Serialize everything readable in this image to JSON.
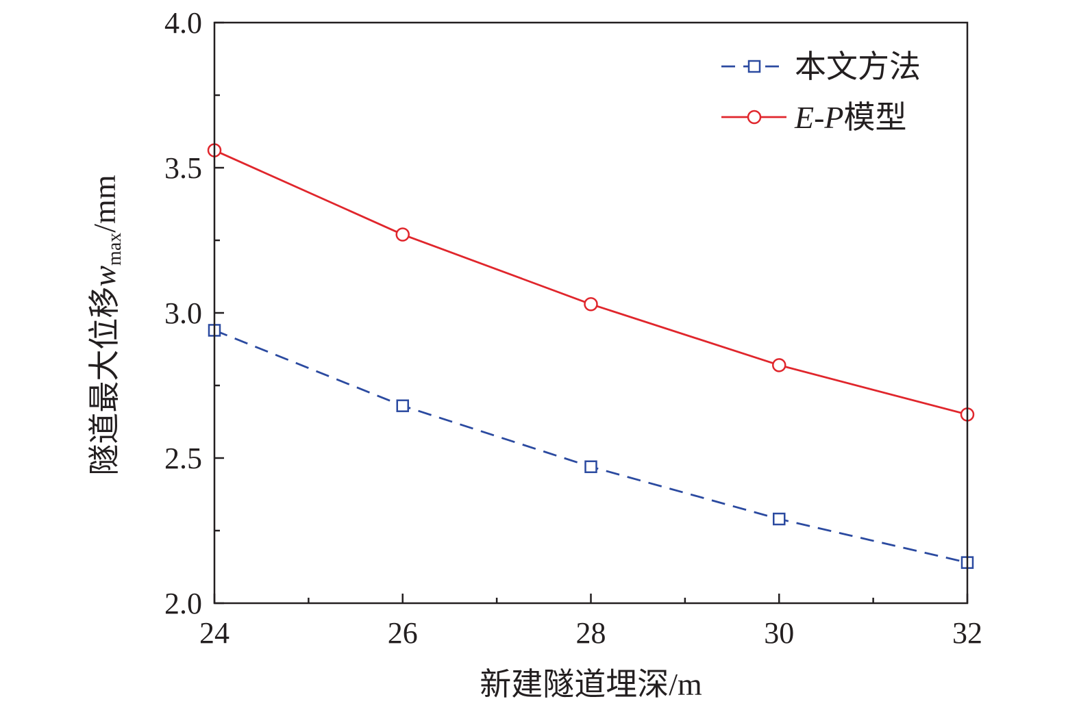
{
  "chart_data": {
    "type": "line",
    "xlabel": "新建隧道埋深/m",
    "ylabel": {
      "prefix": "隧道最大位移",
      "symbol": "w",
      "subscript": "max",
      "unit": "/mm"
    },
    "xlim": [
      24,
      32
    ],
    "ylim": [
      2.0,
      4.0
    ],
    "xticks": [
      24,
      26,
      28,
      30,
      32
    ],
    "xtick_labels": [
      "24",
      "26",
      "28",
      "30",
      "32"
    ],
    "yticks": [
      2.0,
      2.5,
      3.0,
      3.5,
      4.0
    ],
    "ytick_labels": [
      "2.0",
      "2.5",
      "3.0",
      "3.5",
      "4.0"
    ],
    "x_minor_step": 1,
    "y_minor_step": 0.25,
    "grid": false,
    "legend_position": "top-right",
    "x": [
      24,
      26,
      28,
      30,
      32
    ],
    "series": [
      {
        "name": "本文方法",
        "values": [
          2.94,
          2.68,
          2.47,
          2.29,
          2.14
        ],
        "color": "#2b4aa0",
        "marker": "square",
        "line": "dashed"
      },
      {
        "name": "E-P模型",
        "name_parts": {
          "italic": "E-P",
          "rest": "模型"
        },
        "values": [
          3.56,
          3.27,
          3.03,
          2.82,
          2.65
        ],
        "color": "#e0262c",
        "marker": "circle",
        "line": "solid"
      }
    ]
  }
}
